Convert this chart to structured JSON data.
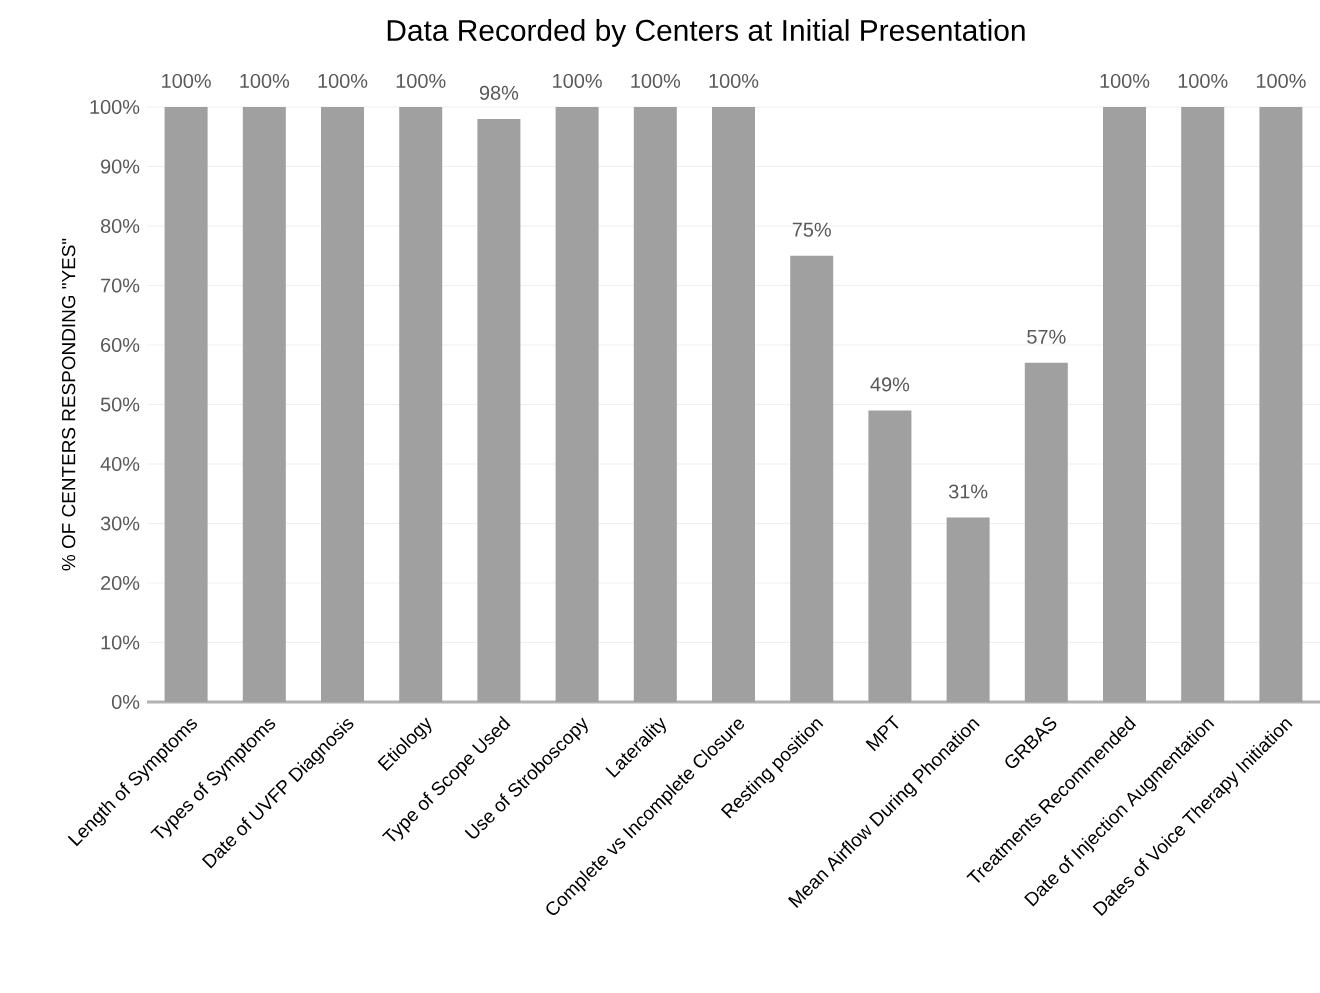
{
  "chart_data": {
    "type": "bar",
    "title": "Data Recorded by Centers at Initial Presentation",
    "ylabel": "% OF CENTERS RESPONDING \"YES\"",
    "categories": [
      "Length of  Symptoms",
      "Types of Symptoms",
      "Date of UVFP Diagnosis",
      "Etiology",
      "Type of Scope Used",
      "Use of Stroboscopy",
      "Laterality",
      "Complete vs Incomplete Closure",
      "Resting position",
      "MPT",
      "Mean Airflow During Phonation",
      "GRBAS",
      "Treatments Recommended",
      "Date of Injection Augmentation",
      "Dates of Voice Therapy Initiation"
    ],
    "values": [
      100,
      100,
      100,
      100,
      98,
      100,
      100,
      100,
      75,
      49,
      31,
      57,
      100,
      100,
      100
    ],
    "value_labels": [
      "100%",
      "100%",
      "100%",
      "100%",
      "98%",
      "100%",
      "100%",
      "100%",
      "75%",
      "49%",
      "31%",
      "57%",
      "100%",
      "100%",
      "100%"
    ],
    "color": "#a0a0a0",
    "ylim": [
      0,
      100
    ],
    "yticks": [
      {
        "value": 0,
        "label": "0%"
      },
      {
        "value": 10,
        "label": "10%"
      },
      {
        "value": 20,
        "label": "20%"
      },
      {
        "value": 30,
        "label": "30%"
      },
      {
        "value": 40,
        "label": "40%"
      },
      {
        "value": 50,
        "label": "50%"
      },
      {
        "value": 60,
        "label": "60%"
      },
      {
        "value": 70,
        "label": "70%"
      },
      {
        "value": 80,
        "label": "80%"
      },
      {
        "value": 90,
        "label": "90%"
      },
      {
        "value": 100,
        "label": "100%"
      }
    ],
    "grid": "y"
  }
}
